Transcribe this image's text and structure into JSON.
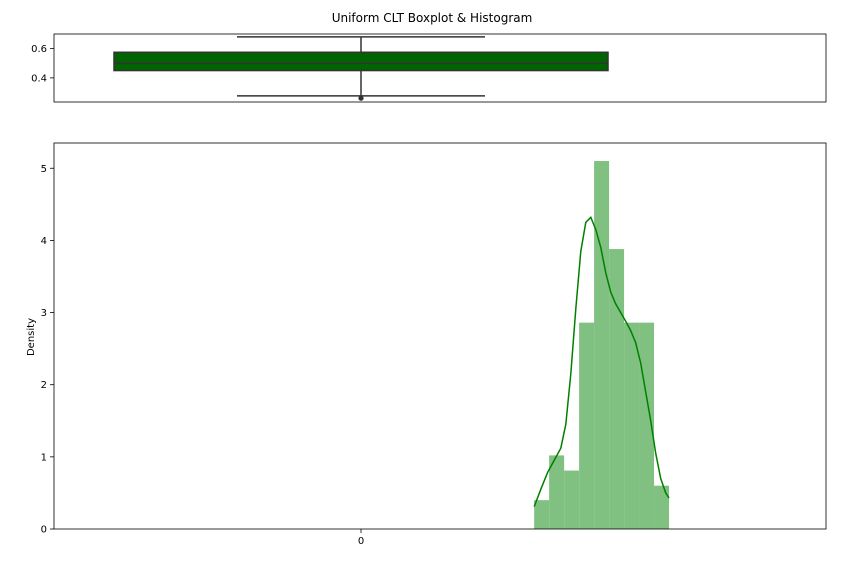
{
  "chart_data": [
    {
      "type": "boxplot",
      "title": "Uniform CLT Boxplot & Histogram",
      "orientation": "horizontal-box, vertical-axis",
      "ylim": [
        0.235,
        0.7
      ],
      "yticks": [
        0.4,
        0.6
      ],
      "ytick_labels": [
        "0.4",
        "0.6"
      ],
      "stats": {
        "whisker_low": 0.277,
        "q1": 0.45,
        "median": 0.5,
        "q3": 0.575,
        "whisker_high": 0.68
      },
      "outliers": [
        0.261
      ],
      "box_color": "#006400",
      "line_color": "#333333"
    },
    {
      "type": "histogram",
      "xlabel": "",
      "ylabel": "Density",
      "ylim": [
        0,
        5.35
      ],
      "yticks": [
        0,
        1,
        2,
        3,
        4,
        5
      ],
      "ytick_labels": [
        "0",
        "1",
        "2",
        "3",
        "4",
        "5"
      ],
      "xticks": [
        0
      ],
      "xtick_labels": [
        "0"
      ],
      "bins": [
        {
          "x_start": 0.52,
          "x_end": 0.565,
          "density": 0.4
        },
        {
          "x_start": 0.565,
          "x_end": 0.61,
          "density": 1.02
        },
        {
          "x_start": 0.61,
          "x_end": 0.655,
          "density": 0.81
        },
        {
          "x_start": 0.655,
          "x_end": 0.7,
          "density": 2.86
        },
        {
          "x_start": 0.7,
          "x_end": 0.745,
          "density": 5.1
        },
        {
          "x_start": 0.745,
          "x_end": 0.79,
          "density": 3.88
        },
        {
          "x_start": 0.79,
          "x_end": 0.835,
          "density": 2.86
        },
        {
          "x_start": 0.835,
          "x_end": 0.88,
          "density": 2.86
        },
        {
          "x_start": 0.88,
          "x_end": 0.925,
          "density": 0.6
        }
      ],
      "kde": {
        "x": [
          0.52,
          0.54,
          0.56,
          0.58,
          0.6,
          0.615,
          0.63,
          0.645,
          0.66,
          0.675,
          0.69,
          0.705,
          0.72,
          0.735,
          0.75,
          0.765,
          0.78,
          0.795,
          0.81,
          0.825,
          0.84,
          0.855,
          0.87,
          0.885,
          0.9,
          0.915,
          0.925
        ],
        "y": [
          0.31,
          0.55,
          0.78,
          0.95,
          1.12,
          1.45,
          2.15,
          3.05,
          3.85,
          4.25,
          4.32,
          4.15,
          3.9,
          3.55,
          3.28,
          3.12,
          3.0,
          2.88,
          2.75,
          2.58,
          2.3,
          1.9,
          1.5,
          1.05,
          0.7,
          0.5,
          0.43
        ]
      },
      "bar_color": "#80c080",
      "kde_color": "#008000"
    }
  ]
}
